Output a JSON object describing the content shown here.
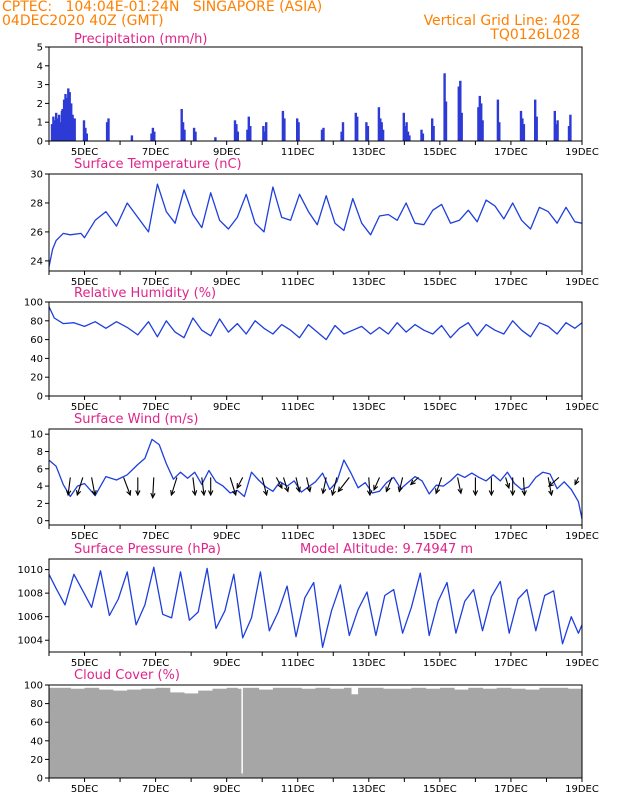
{
  "header": {
    "line1_left": "CPTEC:   104:04E-01:24N   SINGAPORE (ASIA)",
    "line2_left": "04DEC2020 40Z (GMT)",
    "line1_right": "Vertical Grid Line: 40Z",
    "line2_right": "TQ0126L028"
  },
  "colors": {
    "header": "#ff8000",
    "title": "#e0248a",
    "line": "#1f3fdc",
    "bar": "#2d3ad6",
    "cloud": "#a6a6a6",
    "arrow": "#000000"
  },
  "x_labels": [
    "5DEC",
    "7DEC",
    "9DEC",
    "11DEC",
    "13DEC",
    "15DEC",
    "17DEC",
    "19DEC"
  ],
  "chart_data": [
    {
      "type": "bar",
      "title": "Precipitation (mm/h)",
      "ylim": [
        0,
        5
      ],
      "yticks": [
        0,
        1,
        2,
        3,
        4,
        5
      ],
      "x_days": [
        4.0,
        19.0
      ],
      "bursts": [
        {
          "day": 4.05,
          "values": [
            0.9,
            1.3,
            1.1,
            1.5,
            1.2,
            1.4,
            1.0,
            1.6,
            1.3
          ]
        },
        {
          "day": 4.35,
          "values": [
            1.7,
            2.2,
            2.5,
            2.3,
            2.8,
            2.6,
            2.0,
            1.4
          ]
        },
        {
          "day": 4.65,
          "values": [
            0.8,
            1.2
          ]
        },
        {
          "day": 4.95,
          "values": [
            1.1,
            0.7,
            0.4
          ]
        },
        {
          "day": 5.6,
          "values": [
            1.0,
            1.2
          ]
        },
        {
          "day": 6.3,
          "values": [
            0.3
          ]
        },
        {
          "day": 6.85,
          "values": [
            0.4,
            0.7,
            0.5
          ]
        },
        {
          "day": 7.7,
          "values": [
            1.7,
            1.0,
            0.6
          ]
        },
        {
          "day": 8.05,
          "values": [
            0.7,
            0.5
          ]
        },
        {
          "day": 8.65,
          "values": [
            0.2
          ]
        },
        {
          "day": 9.2,
          "values": [
            1.1,
            0.9,
            0.5
          ]
        },
        {
          "day": 9.55,
          "values": [
            0.6,
            1.3,
            0.8
          ]
        },
        {
          "day": 10.0,
          "values": [
            0.8,
            0.5,
            1.0
          ]
        },
        {
          "day": 10.55,
          "values": [
            1.6,
            1.2
          ]
        },
        {
          "day": 10.95,
          "values": [
            1.2,
            1.0
          ]
        },
        {
          "day": 11.65,
          "values": [
            0.6,
            0.7
          ]
        },
        {
          "day": 12.2,
          "values": [
            0.5,
            1.0
          ]
        },
        {
          "day": 12.6,
          "values": [
            1.5,
            1.3
          ]
        },
        {
          "day": 12.9,
          "values": [
            1.0,
            0.8
          ]
        },
        {
          "day": 13.25,
          "values": [
            1.8,
            1.2,
            1.0,
            0.6
          ]
        },
        {
          "day": 13.95,
          "values": [
            1.5,
            0.8,
            1.0,
            0.5,
            0.3
          ]
        },
        {
          "day": 14.45,
          "values": [
            0.6,
            0.4
          ]
        },
        {
          "day": 14.75,
          "values": [
            1.2,
            0.8
          ]
        },
        {
          "day": 15.1,
          "values": [
            3.6,
            2.1
          ]
        },
        {
          "day": 15.5,
          "values": [
            2.9,
            3.2,
            1.5
          ]
        },
        {
          "day": 16.05,
          "values": [
            1.8,
            2.4,
            2.0,
            1.1
          ]
        },
        {
          "day": 16.6,
          "values": [
            2.2,
            1.0
          ]
        },
        {
          "day": 17.25,
          "values": [
            1.6,
            1.2,
            0.9
          ]
        },
        {
          "day": 17.65,
          "values": [
            2.2,
            1.3
          ]
        },
        {
          "day": 18.2,
          "values": [
            1.6,
            0.9,
            1.1
          ]
        },
        {
          "day": 18.6,
          "values": [
            0.8,
            1.4
          ]
        }
      ]
    },
    {
      "type": "line",
      "title": "Surface Temperature (nC)",
      "ylim": [
        23.3,
        30
      ],
      "yticks": [
        24,
        26,
        28,
        30
      ],
      "x": [
        4.0,
        4.1,
        4.2,
        4.4,
        4.6,
        4.9,
        5.0,
        5.3,
        5.6,
        5.9,
        6.2,
        6.5,
        6.8,
        7.05,
        7.3,
        7.55,
        7.8,
        8.05,
        8.3,
        8.55,
        8.8,
        9.05,
        9.3,
        9.55,
        9.8,
        10.05,
        10.3,
        10.55,
        10.8,
        11.05,
        11.3,
        11.55,
        11.8,
        12.05,
        12.3,
        12.55,
        12.8,
        13.05,
        13.3,
        13.55,
        13.8,
        14.05,
        14.3,
        14.55,
        14.8,
        15.05,
        15.3,
        15.55,
        15.8,
        16.05,
        16.3,
        16.55,
        16.8,
        17.05,
        17.3,
        17.55,
        17.8,
        18.05,
        18.3,
        18.55,
        18.8,
        19.0
      ],
      "y": [
        23.6,
        24.8,
        25.4,
        25.9,
        25.8,
        25.9,
        25.6,
        26.8,
        27.4,
        26.4,
        28.0,
        27.0,
        26.0,
        29.3,
        27.4,
        26.6,
        28.9,
        27.2,
        26.3,
        28.7,
        26.8,
        26.2,
        27.0,
        28.6,
        26.6,
        26.0,
        29.1,
        27.0,
        26.8,
        28.6,
        27.4,
        26.5,
        28.5,
        26.6,
        26.1,
        28.3,
        26.6,
        25.8,
        27.1,
        27.2,
        26.8,
        28.0,
        26.6,
        26.5,
        27.5,
        27.9,
        26.6,
        26.8,
        27.5,
        26.7,
        28.2,
        27.8,
        26.9,
        28.0,
        26.8,
        26.2,
        27.7,
        27.4,
        26.6,
        27.7,
        26.7,
        26.6
      ]
    },
    {
      "type": "line",
      "title": "Relative Humidity (%)",
      "ylim": [
        0,
        100
      ],
      "yticks": [
        0,
        20,
        40,
        60,
        80,
        100
      ],
      "x": [
        4.0,
        4.15,
        4.4,
        4.7,
        5.0,
        5.3,
        5.6,
        5.9,
        6.2,
        6.5,
        6.8,
        7.05,
        7.3,
        7.55,
        7.8,
        8.05,
        8.3,
        8.55,
        8.8,
        9.05,
        9.3,
        9.55,
        9.8,
        10.05,
        10.3,
        10.55,
        10.8,
        11.05,
        11.3,
        11.55,
        11.8,
        12.05,
        12.3,
        12.55,
        12.8,
        13.05,
        13.3,
        13.55,
        13.8,
        14.05,
        14.3,
        14.55,
        14.8,
        15.05,
        15.3,
        15.55,
        15.8,
        16.05,
        16.3,
        16.55,
        16.8,
        17.05,
        17.3,
        17.55,
        17.8,
        18.05,
        18.3,
        18.55,
        18.8,
        19.0
      ],
      "y": [
        95,
        83,
        77,
        78,
        74,
        79,
        72,
        79,
        73,
        65,
        79,
        63,
        80,
        68,
        62,
        83,
        70,
        64,
        82,
        68,
        77,
        66,
        80,
        72,
        66,
        76,
        70,
        62,
        76,
        68,
        60,
        75,
        66,
        70,
        74,
        66,
        73,
        66,
        78,
        68,
        76,
        70,
        66,
        75,
        62,
        72,
        78,
        64,
        76,
        70,
        66,
        80,
        70,
        63,
        78,
        74,
        66,
        78,
        72,
        78
      ]
    },
    {
      "type": "line",
      "title": "Surface Wind (m/s)",
      "ylim": [
        -0.5,
        10.6
      ],
      "yticks": [
        0,
        2,
        4,
        6,
        8,
        10
      ],
      "x": [
        4.0,
        4.2,
        4.4,
        4.6,
        4.8,
        5.0,
        5.3,
        5.6,
        5.9,
        6.2,
        6.5,
        6.7,
        6.9,
        7.1,
        7.3,
        7.5,
        7.7,
        7.9,
        8.1,
        8.3,
        8.5,
        8.7,
        8.9,
        9.1,
        9.3,
        9.5,
        9.7,
        9.9,
        10.1,
        10.3,
        10.5,
        10.7,
        10.9,
        11.1,
        11.3,
        11.5,
        11.7,
        11.9,
        12.1,
        12.3,
        12.5,
        12.7,
        12.9,
        13.1,
        13.3,
        13.5,
        13.7,
        13.9,
        14.1,
        14.3,
        14.5,
        14.7,
        14.9,
        15.1,
        15.3,
        15.5,
        15.7,
        15.9,
        16.1,
        16.3,
        16.5,
        16.7,
        16.9,
        17.1,
        17.3,
        17.5,
        17.7,
        17.9,
        18.1,
        18.3,
        18.5,
        18.7,
        18.9,
        19.0
      ],
      "y": [
        7.0,
        6.3,
        4.2,
        2.8,
        4.0,
        4.3,
        2.9,
        5.1,
        4.7,
        5.3,
        6.5,
        7.2,
        9.4,
        8.8,
        6.6,
        4.8,
        5.6,
        4.9,
        5.6,
        4.2,
        5.8,
        4.5,
        4.0,
        3.2,
        3.5,
        2.8,
        5.6,
        4.7,
        3.9,
        3.4,
        4.5,
        4.0,
        4.6,
        3.3,
        3.9,
        4.5,
        5.5,
        3.6,
        4.5,
        7.0,
        5.5,
        3.8,
        4.4,
        3.2,
        3.4,
        4.4,
        5.0,
        3.7,
        4.4,
        5.1,
        4.6,
        3.1,
        4.1,
        4.0,
        4.6,
        5.4,
        5.0,
        5.5,
        5.0,
        4.6,
        5.3,
        4.6,
        5.6,
        4.3,
        3.6,
        3.9,
        5.0,
        5.6,
        5.4,
        3.7,
        4.5,
        3.6,
        2.2,
        0.2
      ],
      "arrows": [
        {
          "day": 4.6,
          "dx": -0.2,
          "dy": 1
        },
        {
          "day": 4.95,
          "dx": -0.5,
          "dy": 1
        },
        {
          "day": 5.2,
          "dx": 0.3,
          "dy": 1
        },
        {
          "day": 6.1,
          "dx": 0.6,
          "dy": 1
        },
        {
          "day": 6.5,
          "dx": 0.0,
          "dy": 1
        },
        {
          "day": 6.95,
          "dx": -0.1,
          "dy": 1.15
        },
        {
          "day": 7.6,
          "dx": -0.5,
          "dy": 1
        },
        {
          "day": 8.05,
          "dx": 0.2,
          "dy": 1
        },
        {
          "day": 8.3,
          "dx": 0.2,
          "dy": 1
        },
        {
          "day": 8.55,
          "dx": 0.0,
          "dy": 1
        },
        {
          "day": 9.1,
          "dx": 0.5,
          "dy": 1
        },
        {
          "day": 9.45,
          "dx": -0.5,
          "dy": 0.6
        },
        {
          "day": 10.0,
          "dx": 0.4,
          "dy": 1
        },
        {
          "day": 10.4,
          "dx": 0.5,
          "dy": 0.6
        },
        {
          "day": 10.6,
          "dx": 0.4,
          "dy": 0.8
        },
        {
          "day": 10.95,
          "dx": 0.3,
          "dy": 0.8
        },
        {
          "day": 11.25,
          "dx": 0.3,
          "dy": 0.8
        },
        {
          "day": 11.8,
          "dx": -0.3,
          "dy": 0.9
        },
        {
          "day": 12.1,
          "dx": -0.4,
          "dy": 1
        },
        {
          "day": 12.45,
          "dx": -1.0,
          "dy": 0.8
        },
        {
          "day": 13.0,
          "dx": 0.1,
          "dy": 1
        },
        {
          "day": 13.3,
          "dx": -0.5,
          "dy": 0.7
        },
        {
          "day": 13.65,
          "dx": -0.5,
          "dy": 0.8
        },
        {
          "day": 13.95,
          "dx": -0.3,
          "dy": 0.8
        },
        {
          "day": 14.4,
          "dx": -0.7,
          "dy": 0.4
        },
        {
          "day": 15.05,
          "dx": -0.5,
          "dy": 0.9
        },
        {
          "day": 15.5,
          "dx": 0.3,
          "dy": 0.9
        },
        {
          "day": 16.0,
          "dx": 0.0,
          "dy": 1
        },
        {
          "day": 16.45,
          "dx": 0.0,
          "dy": 1
        },
        {
          "day": 16.85,
          "dx": 0.3,
          "dy": 0.6
        },
        {
          "day": 17.05,
          "dx": 0.0,
          "dy": 1
        },
        {
          "day": 17.35,
          "dx": 0.1,
          "dy": 1
        },
        {
          "day": 18.05,
          "dx": 0.3,
          "dy": 1
        },
        {
          "day": 18.35,
          "dx": -0.9,
          "dy": 0.5
        },
        {
          "day": 18.9,
          "dx": -0.3,
          "dy": 0.4
        }
      ]
    },
    {
      "type": "line",
      "title": "Surface Pressure (hPa)",
      "subtitle": "Model Altitude: 9.74947 m",
      "ylim": [
        1003.0,
        1010.9
      ],
      "yticks": [
        1004,
        1006,
        1008,
        1010
      ],
      "x": [
        4.0,
        4.2,
        4.45,
        4.7,
        4.95,
        5.2,
        5.45,
        5.7,
        5.95,
        6.2,
        6.45,
        6.7,
        6.95,
        7.2,
        7.45,
        7.7,
        7.95,
        8.2,
        8.45,
        8.7,
        8.95,
        9.2,
        9.45,
        9.7,
        9.95,
        10.2,
        10.45,
        10.7,
        10.95,
        11.2,
        11.45,
        11.7,
        11.95,
        12.2,
        12.45,
        12.7,
        12.95,
        13.2,
        13.45,
        13.7,
        13.95,
        14.2,
        14.45,
        14.7,
        14.95,
        15.2,
        15.45,
        15.7,
        15.95,
        16.2,
        16.45,
        16.7,
        16.95,
        17.2,
        17.45,
        17.7,
        17.95,
        18.2,
        18.45,
        18.7,
        18.9,
        19.0
      ],
      "y": [
        1009.6,
        1008.4,
        1007.0,
        1009.6,
        1008.2,
        1006.8,
        1009.9,
        1006.1,
        1007.5,
        1009.8,
        1005.3,
        1007.0,
        1010.2,
        1006.2,
        1005.9,
        1009.8,
        1005.7,
        1006.4,
        1010.1,
        1005.0,
        1006.5,
        1009.6,
        1004.2,
        1005.9,
        1009.8,
        1004.8,
        1006.4,
        1008.6,
        1004.3,
        1007.6,
        1008.9,
        1003.4,
        1006.5,
        1008.7,
        1004.4,
        1006.6,
        1008.1,
        1004.4,
        1007.8,
        1008.3,
        1004.6,
        1006.8,
        1009.7,
        1004.4,
        1007.3,
        1008.9,
        1004.6,
        1007.3,
        1008.3,
        1004.8,
        1007.7,
        1009.0,
        1004.6,
        1007.5,
        1008.3,
        1004.8,
        1007.8,
        1008.2,
        1003.7,
        1006.0,
        1004.6,
        1005.3
      ]
    },
    {
      "type": "bar",
      "title": "Cloud Cover (%)",
      "ylim": [
        0,
        100
      ],
      "yticks": [
        0,
        20,
        40,
        60,
        80,
        100
      ],
      "x": [
        4.0,
        4.3,
        4.6,
        5.0,
        5.4,
        5.8,
        6.2,
        6.6,
        7.0,
        7.4,
        7.8,
        8.2,
        8.6,
        9.0,
        9.3,
        9.4,
        9.5,
        9.9,
        10.3,
        10.7,
        11.1,
        11.5,
        11.9,
        12.3,
        12.5,
        12.7,
        13.0,
        13.4,
        13.8,
        14.2,
        14.6,
        15.0,
        15.4,
        15.8,
        16.2,
        16.6,
        17.0,
        17.4,
        17.8,
        18.2,
        18.6,
        19.0
      ],
      "y": [
        97,
        97,
        96,
        97,
        95,
        94,
        95,
        96,
        97,
        92,
        91,
        94,
        96,
        97,
        96,
        5,
        97,
        95,
        97,
        97,
        96,
        97,
        96,
        97,
        90,
        97,
        97,
        96,
        96,
        97,
        96,
        97,
        95,
        97,
        96,
        97,
        96,
        95,
        97,
        97,
        96,
        95
      ]
    }
  ]
}
